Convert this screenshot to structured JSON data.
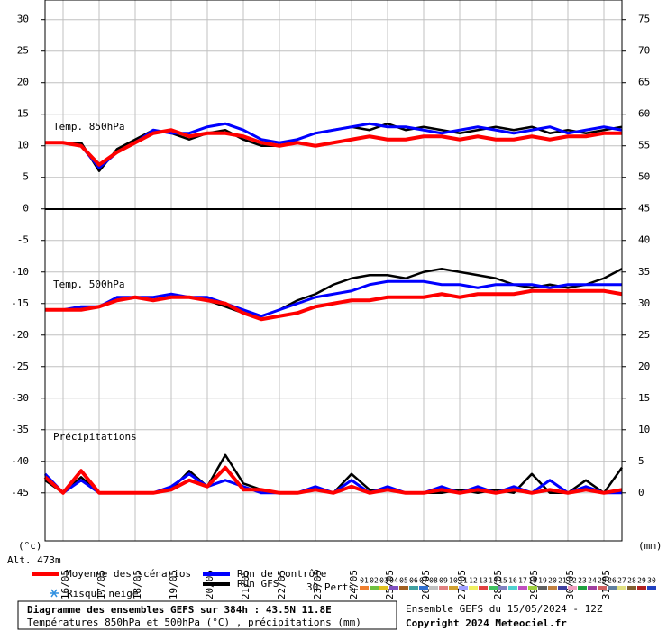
{
  "chart_data": {
    "type": "line",
    "title": "Diagramme des ensembles GEFS sur 384h : 43.5N 11.8E",
    "subtitle": "Températures 850hPa et 500hPa (°C) , précipitations (mm)",
    "run_info": "Ensemble GEFS du 15/05/2024 - 12Z",
    "copyright": "Copyright 2024 Meteociel.fr",
    "y_label": "(°c)",
    "y2_label": "(mm)",
    "altitude": "Alt. 473m",
    "snow_label": "Risque neige",
    "annotations": [
      "Temp. 850hPa",
      "Temp. 500hPa",
      "Précipitations"
    ],
    "grid": true,
    "x": [
      0,
      12,
      24,
      36,
      48,
      60,
      72,
      84,
      96,
      108,
      120,
      132,
      144,
      156,
      168,
      180,
      192,
      204,
      216,
      228,
      240,
      252,
      264,
      276,
      288,
      300,
      312,
      324,
      336,
      348,
      360,
      372,
      384
    ],
    "xlim": [
      0,
      384
    ],
    "xticks": [
      {
        "value": 12,
        "label": "16/05"
      },
      {
        "value": 36,
        "label": "17/05"
      },
      {
        "value": 60,
        "label": "18/05"
      },
      {
        "value": 84,
        "label": "19/05"
      },
      {
        "value": 108,
        "label": "20/05"
      },
      {
        "value": 132,
        "label": "21/05"
      },
      {
        "value": 156,
        "label": "22/05"
      },
      {
        "value": 180,
        "label": "23/05"
      },
      {
        "value": 204,
        "label": "24/05"
      },
      {
        "value": 228,
        "label": "25/05"
      },
      {
        "value": 252,
        "label": "26/05"
      },
      {
        "value": 276,
        "label": "27/05"
      },
      {
        "value": 300,
        "label": "28/05"
      },
      {
        "value": 324,
        "label": "29/05"
      },
      {
        "value": 348,
        "label": "30/05"
      },
      {
        "value": 372,
        "label": "31/05"
      }
    ],
    "ylim": [
      -52.6,
      33.1
    ],
    "yticks": [
      30,
      25,
      20,
      15,
      10,
      5,
      0,
      -5,
      -10,
      -15,
      -20,
      -25,
      -30,
      -35,
      -40,
      -45
    ],
    "y2lim": [
      -7.6,
      78.1
    ],
    "y2ticks": [
      75,
      70,
      65,
      60,
      55,
      50,
      45,
      40,
      35,
      30,
      25,
      20,
      15,
      10,
      5,
      0
    ],
    "series": [
      {
        "name": "Run GFS",
        "color": "#000000",
        "values": [
          10.5,
          10.5,
          10.5,
          6,
          9.5,
          11,
          12.5,
          12,
          11,
          12,
          12.5,
          11,
          10,
          10,
          11,
          12,
          12.5,
          13,
          12.5,
          13.5,
          12.5,
          13,
          12.5,
          12,
          12.5,
          13,
          12.5,
          13,
          12,
          12.5,
          12,
          12.5,
          13
        ]
      },
      {
        "name": "Run de contrôle",
        "color": "#0000ff",
        "values": [
          10.5,
          10.5,
          10,
          6.5,
          9,
          10.5,
          12.5,
          12,
          12,
          13,
          13.5,
          12.5,
          11,
          10.5,
          11,
          12,
          12.5,
          13,
          13.5,
          13,
          13,
          12.5,
          12,
          12.5,
          13,
          12.5,
          12,
          12.5,
          13,
          12,
          12.5,
          13,
          12.5
        ]
      },
      {
        "name": "Moyenne des scénarios",
        "color": "#ff0000",
        "values": [
          10.5,
          10.5,
          10,
          7,
          9,
          10.5,
          12,
          12.5,
          11.5,
          12,
          12,
          11.5,
          10.5,
          10,
          10.5,
          10,
          10.5,
          11,
          11.5,
          11,
          11,
          11.5,
          11.5,
          11,
          11.5,
          11,
          11,
          11.5,
          11,
          11.5,
          11.5,
          12,
          12
        ]
      },
      {
        "name": "Run GFS",
        "color": "#000000",
        "values": [
          -16,
          -16,
          -15.5,
          -15.5,
          -14.5,
          -14,
          -14.5,
          -14,
          -14,
          -14.5,
          -15.5,
          -16.5,
          -17,
          -16,
          -14.5,
          -13.5,
          -12,
          -11,
          -10.5,
          -10.5,
          -11,
          -10,
          -9.5,
          -10,
          -10.5,
          -11,
          -12,
          -12.5,
          -12,
          -12.5,
          -12,
          -11,
          -9.5
        ]
      },
      {
        "name": "Run de contrôle",
        "color": "#0000ff",
        "values": [
          -16,
          -16,
          -15.5,
          -15.5,
          -14,
          -14,
          -14,
          -13.5,
          -14,
          -14,
          -15,
          -16,
          -17,
          -16,
          -15,
          -14,
          -13.5,
          -13,
          -12,
          -11.5,
          -11.5,
          -11.5,
          -12,
          -12,
          -12.5,
          -12,
          -12,
          -12,
          -12.5,
          -12,
          -12,
          -12,
          -12
        ]
      },
      {
        "name": "Moyenne des scénarios",
        "color": "#ff0000",
        "values": [
          -16,
          -16,
          -16,
          -15.5,
          -14.5,
          -14,
          -14.5,
          -14,
          -14,
          -14.5,
          -15,
          -16.5,
          -17.5,
          -17,
          -16.5,
          -15.5,
          -15,
          -14.5,
          -14.5,
          -14,
          -14,
          -14,
          -13.5,
          -14,
          -13.5,
          -13.5,
          -13.5,
          -13,
          -13,
          -13,
          -13,
          -13,
          -13.5
        ]
      },
      {
        "name": "Run GFS",
        "color": "#000000",
        "axis": "y2",
        "values": [
          2,
          0,
          2.5,
          0,
          0,
          0,
          0,
          0.5,
          3.5,
          1,
          6,
          1.5,
          0.5,
          0,
          0,
          0.5,
          0,
          3,
          0.5,
          0.5,
          0,
          0,
          0,
          0.5,
          0,
          0.5,
          0,
          3,
          0,
          0,
          2,
          0,
          4
        ]
      },
      {
        "name": "Run de contrôle",
        "color": "#0000ff",
        "axis": "y2",
        "values": [
          3,
          0,
          2,
          0,
          0,
          0,
          0,
          1,
          3,
          1,
          2,
          1,
          0,
          0,
          0,
          1,
          0,
          2,
          0,
          1,
          0,
          0,
          1,
          0,
          1,
          0,
          1,
          0,
          2,
          0,
          1,
          0,
          0
        ]
      },
      {
        "name": "Moyenne des scénarios",
        "color": "#ff0000",
        "axis": "y2",
        "values": [
          2.5,
          0,
          3.5,
          0,
          0,
          0,
          0,
          0.5,
          2,
          1,
          4,
          0.5,
          0.5,
          0,
          0,
          0.5,
          0,
          1,
          0,
          0.5,
          0,
          0,
          0.5,
          0,
          0.5,
          0,
          0.5,
          0,
          0.5,
          0,
          0.5,
          0,
          0.5
        ]
      }
    ],
    "perturbations": {
      "label": "30 Perts.",
      "names": [
        "01",
        "02",
        "03",
        "04",
        "05",
        "06",
        "07",
        "08",
        "09",
        "10",
        "11",
        "12",
        "13",
        "14",
        "15",
        "16",
        "17",
        "18",
        "19",
        "20",
        "21",
        "22",
        "23",
        "24",
        "25",
        "26",
        "27",
        "28",
        "29",
        "30"
      ],
      "colors": [
        "#f08030",
        "#70c040",
        "#e0c020",
        "#8050c0",
        "#a06020",
        "#40a0a0",
        "#3070d0",
        "#c0c0c0",
        "#e08080",
        "#d0a030",
        "#a0a0ff",
        "#f0f060",
        "#e04040",
        "#40c060",
        "#8080c0",
        "#50d0d0",
        "#c050c0",
        "#a0d040",
        "#606060",
        "#c08040",
        "#4040a0",
        "#f0a0c0",
        "#20a040",
        "#a040a0",
        "#d06060",
        "#6080a0",
        "#e0e080",
        "#806030",
        "#b02020",
        "#2040c0"
      ]
    }
  }
}
